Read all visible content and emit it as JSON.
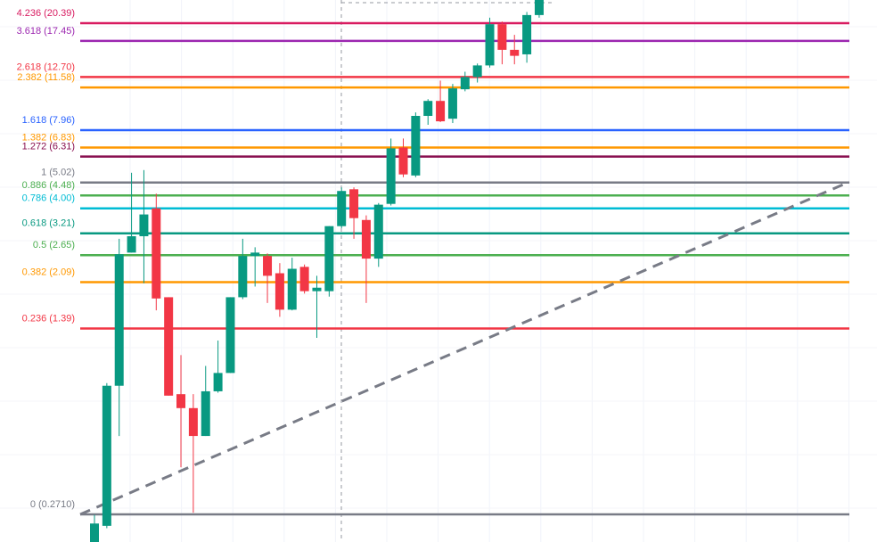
{
  "chart_data": {
    "type": "candlestick",
    "log_scale": true,
    "ylim": [
      0.2125,
      25.0
    ],
    "up_color": "#089981",
    "down_color": "#f23645",
    "fib_levels": [
      {
        "value": 20.39,
        "label": "4.236 (20.39)",
        "color": "#d81b60"
      },
      {
        "value": 17.45,
        "label": "3.618 (17.45)",
        "color": "#9c27b0"
      },
      {
        "value": 12.7,
        "label": "2.618 (12.70)",
        "color": "#f23645"
      },
      {
        "value": 11.58,
        "label": "2.382 (11.58)",
        "color": "#ff9800"
      },
      {
        "value": 7.96,
        "label": "1.618 (7.96)",
        "color": "#2962ff"
      },
      {
        "value": 6.83,
        "label": "1.382 (6.83)",
        "color": "#ff9800"
      },
      {
        "value": 6.31,
        "label": "1.272 (6.31)",
        "color": "#880e4f"
      },
      {
        "value": 5.02,
        "label": "1 (5.02)",
        "color": "#787b86"
      },
      {
        "value": 4.48,
        "label": "0.886 (4.48)",
        "color": "#4caf50"
      },
      {
        "value": 4.0,
        "label": "0.786 (4.00)",
        "color": "#00bcd4"
      },
      {
        "value": 3.21,
        "label": "0.618 (3.21)",
        "color": "#089981"
      },
      {
        "value": 2.65,
        "label": "0.5 (2.65)",
        "color": "#4caf50"
      },
      {
        "value": 2.09,
        "label": "0.382 (2.09)",
        "color": "#ff9800"
      },
      {
        "value": 1.39,
        "label": "0.236 (1.39)",
        "color": "#f23645"
      },
      {
        "value": 0.271,
        "label": "0 (0.2710)",
        "color": "#787b86"
      }
    ],
    "candles": {
      "open": [
        0.21,
        0.245,
        0.84,
        2.71,
        3.13,
        4.0,
        1.83,
        0.78,
        0.69,
        0.54,
        0.8,
        0.94,
        1.83,
        2.63,
        2.63,
        2.26,
        1.64,
        2.39,
        1.93,
        1.93,
        3.42,
        4.73,
        3.61,
        2.57,
        4.16,
        6.83,
        5.34,
        9.02,
        10.29,
        8.8,
        11.4,
        12.7,
        14.06,
        20.2,
        16.13,
        15.5,
        21.9
      ],
      "high": [
        0.27,
        0.86,
        3.06,
        5.47,
        5.6,
        4.55,
        1.83,
        1.1,
        0.78,
        1.0,
        1.25,
        1.83,
        3.06,
        2.84,
        2.69,
        2.47,
        2.59,
        2.44,
        2.21,
        3.42,
        4.81,
        4.81,
        3.76,
        4.19,
        7.39,
        7.39,
        9.3,
        10.45,
        12.3,
        11.95,
        13.3,
        14.3,
        21.4,
        20.7,
        18.4,
        22.5,
        25.5
      ],
      "low": [
        0.2,
        0.24,
        0.54,
        2.71,
        2.07,
        1.63,
        0.77,
        0.41,
        0.275,
        0.54,
        0.79,
        0.94,
        1.8,
        2.01,
        1.74,
        1.54,
        1.63,
        1.89,
        1.28,
        1.84,
        3.36,
        3.06,
        1.74,
        2.39,
        4.1,
        5.26,
        5.26,
        8.34,
        8.54,
        8.47,
        11.2,
        12.1,
        13.8,
        14.2,
        14.2,
        14.4,
        21.4
      ],
      "close": [
        0.25,
        0.84,
        2.67,
        3.13,
        3.79,
        1.81,
        0.77,
        0.69,
        0.54,
        0.8,
        0.94,
        1.83,
        2.63,
        2.71,
        2.21,
        1.64,
        2.35,
        1.93,
        1.99,
        3.42,
        4.66,
        3.67,
        2.57,
        4.13,
        6.78,
        5.39,
        9.02,
        10.29,
        8.6,
        11.49,
        12.7,
        14.06,
        20.2,
        16.13,
        15.3,
        21.9,
        25.0
      ]
    }
  }
}
